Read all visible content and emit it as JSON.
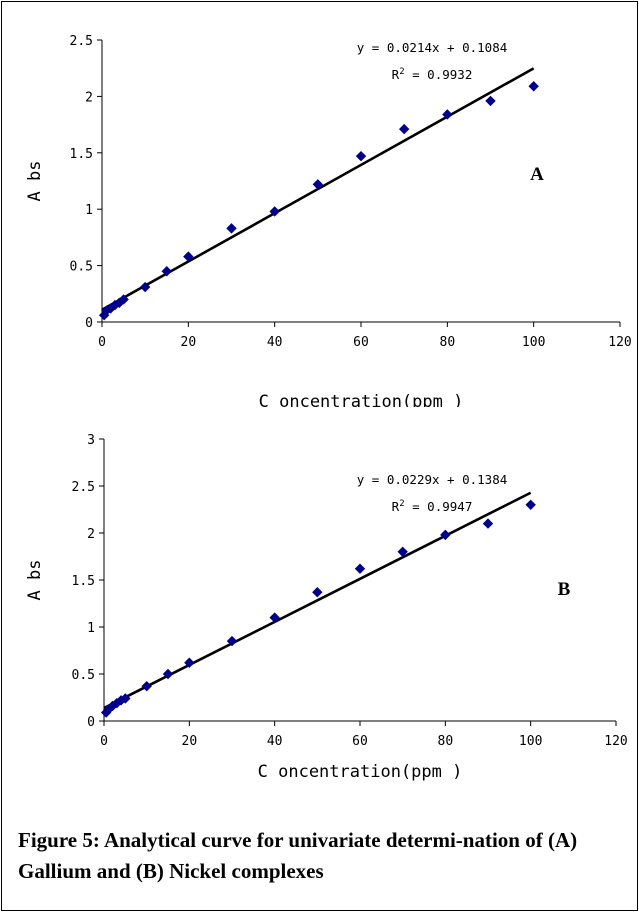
{
  "caption": "Figure 5: Analytical curve for univariate determi-nation of (A) Gallium and (B) Nickel complexes",
  "chart_data": [
    {
      "type": "scatter",
      "panel_label": "A",
      "xlabel": "C oncentration(ppm )",
      "ylabel": "A bs",
      "xlim": [
        0,
        120
      ],
      "ylim": [
        0,
        2.5
      ],
      "xticks": [
        "0",
        "20",
        "40",
        "60",
        "80",
        "100",
        "120"
      ],
      "yticks": [
        "0",
        "0.5",
        "1",
        "1.5",
        "2",
        "2.5"
      ],
      "equation": "y = 0.0214x + 0.1084",
      "r2_label": "R",
      "r2_exponent": "2",
      "r2_value": " = 0.9932",
      "trendline": {
        "slope": 0.0214,
        "intercept": 0.1084
      },
      "grid": false,
      "marker_color": "#00008B",
      "line_color": "#000000",
      "x": [
        0.5,
        1,
        2,
        3,
        4,
        5,
        10,
        15,
        20,
        30,
        40,
        50,
        60,
        70,
        80,
        90,
        100
      ],
      "y": [
        0.06,
        0.1,
        0.12,
        0.15,
        0.17,
        0.2,
        0.31,
        0.45,
        0.58,
        0.83,
        0.98,
        1.22,
        1.47,
        1.71,
        1.84,
        1.96,
        2.09
      ]
    },
    {
      "type": "scatter",
      "panel_label": "B",
      "xlabel": "C oncentration(ppm )",
      "ylabel": "A bs",
      "xlim": [
        0,
        120
      ],
      "ylim": [
        0,
        3
      ],
      "xticks": [
        "0",
        "20",
        "40",
        "60",
        "80",
        "100",
        "120"
      ],
      "yticks": [
        "0",
        "0.5",
        "1",
        "1.5",
        "2",
        "2.5",
        "3"
      ],
      "equation": "y = 0.0229x + 0.1384",
      "r2_label": "R",
      "r2_exponent": "2",
      "r2_value": " = 0.9947",
      "trendline": {
        "slope": 0.0229,
        "intercept": 0.1384
      },
      "grid": false,
      "marker_color": "#00008B",
      "line_color": "#000000",
      "x": [
        0.5,
        1,
        2,
        3,
        4,
        5,
        10,
        15,
        20,
        30,
        40,
        50,
        60,
        70,
        80,
        90,
        100
      ],
      "y": [
        0.09,
        0.12,
        0.16,
        0.19,
        0.22,
        0.24,
        0.37,
        0.5,
        0.62,
        0.85,
        1.1,
        1.37,
        1.62,
        1.8,
        1.98,
        2.1,
        2.3
      ]
    }
  ]
}
